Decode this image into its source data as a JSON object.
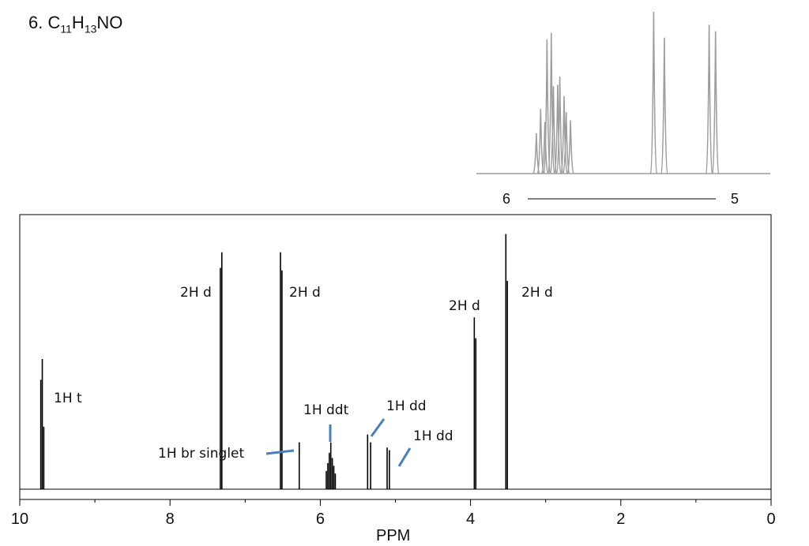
{
  "problem": {
    "number": "6.",
    "formula_parts": [
      "C",
      "11",
      "H",
      "13",
      "NO"
    ]
  },
  "colors": {
    "spectrum_line": "#000000",
    "inset_line": "#9e9e9e",
    "annotation_pointer": "#4a7fbd",
    "frame": "#000000"
  },
  "chart_data": [
    {
      "type": "line",
      "xlabel": "PPM",
      "ylabel": "",
      "xlim": [
        10,
        0
      ],
      "x_reversed": true,
      "x_ticks": [
        "10",
        "8",
        "6",
        "4",
        "2",
        "0"
      ],
      "peaks": [
        {
          "label": "1H t",
          "ppm": [
            9.72,
            9.7,
            9.68
          ],
          "intensity": [
            0.42,
            0.5,
            0.24
          ]
        },
        {
          "label": "2H d",
          "ppm": [
            7.33,
            7.31
          ],
          "intensity": [
            0.85,
            0.91
          ]
        },
        {
          "label": "1H br singlet",
          "ppm": [
            6.28
          ],
          "intensity": [
            0.18
          ]
        },
        {
          "label": "2H d",
          "ppm": [
            6.53,
            6.51
          ],
          "intensity": [
            0.91,
            0.84
          ]
        },
        {
          "label": "1H ddt",
          "ppm": [
            5.92,
            5.9,
            5.88,
            5.86,
            5.84,
            5.82,
            5.8
          ],
          "intensity": [
            0.07,
            0.1,
            0.14,
            0.18,
            0.12,
            0.09,
            0.06
          ]
        },
        {
          "label": "1H dd",
          "ppm": [
            5.37,
            5.33
          ],
          "intensity": [
            0.21,
            0.18
          ]
        },
        {
          "label": "1H dd",
          "ppm": [
            5.11,
            5.08
          ],
          "intensity": [
            0.16,
            0.15
          ]
        },
        {
          "label": "2H d",
          "ppm": [
            3.95,
            3.93
          ],
          "intensity": [
            0.66,
            0.58
          ]
        },
        {
          "label": "2H d",
          "ppm": [
            3.53,
            3.51
          ],
          "intensity": [
            0.98,
            0.8
          ]
        }
      ],
      "annotations": [
        "1H t",
        "2H d",
        "2H d",
        "1H br singlet",
        "1H ddt",
        "1H dd",
        "1H dd",
        "2H d",
        "2H d"
      ]
    },
    {
      "type": "line",
      "title": "",
      "x_range_labels": [
        "6",
        "5"
      ],
      "xlim": [
        6,
        5
      ],
      "x_reversed": true,
      "peaks": [
        {
          "ppm": [
            5.93,
            5.91,
            5.89,
            5.88,
            5.86,
            5.85,
            5.83,
            5.82,
            5.8,
            5.79,
            5.77
          ],
          "intensity": [
            0.25,
            0.4,
            0.32,
            0.83,
            0.87,
            0.54,
            0.55,
            0.6,
            0.48,
            0.38,
            0.33
          ]
        },
        {
          "ppm": [
            5.38,
            5.33
          ],
          "intensity": [
            1.0,
            0.84
          ]
        },
        {
          "ppm": [
            5.12,
            5.09
          ],
          "intensity": [
            0.92,
            0.88
          ]
        }
      ]
    }
  ]
}
